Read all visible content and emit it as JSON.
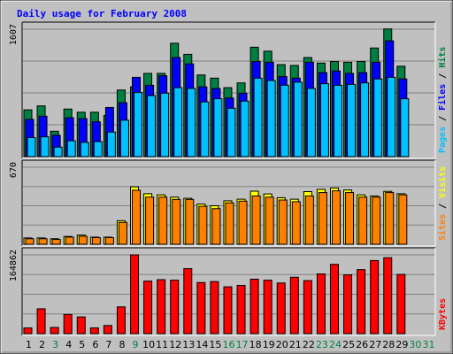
{
  "chart_data": {
    "type": "bar",
    "title": "Daily usage for February 2008",
    "categories": [
      "1",
      "2",
      "3",
      "4",
      "5",
      "6",
      "7",
      "8",
      "9",
      "10",
      "11",
      "12",
      "13",
      "14",
      "15",
      "16",
      "17",
      "18",
      "19",
      "20",
      "21",
      "22",
      "23",
      "24",
      "25",
      "26",
      "27",
      "28",
      "29",
      "30",
      "31"
    ],
    "day_colors": [
      "#000000",
      "#000000",
      "#008040",
      "#000000",
      "#000000",
      "#000000",
      "#000000",
      "#000000",
      "#008040",
      "#000000",
      "#000000",
      "#000000",
      "#000000",
      "#000000",
      "#000000",
      "#008040",
      "#008040",
      "#000000",
      "#000000",
      "#000000",
      "#000000",
      "#000000",
      "#008040",
      "#008040",
      "#000000",
      "#000000",
      "#000000",
      "#000000",
      "#000000",
      "#008040",
      "#008040"
    ],
    "panels": [
      {
        "id": "hits-files-pages",
        "ymax_label": "1607",
        "ymax": 1607,
        "side_label": [
          "Pages",
          " / ",
          "Files",
          " / ",
          "Hits"
        ],
        "side_colors": [
          "#00c0ff",
          "#000000",
          "#0000ff",
          "#000000",
          "#008040"
        ],
        "series": [
          {
            "name": "Hits",
            "color": "#008040",
            "values": [
              590,
              640,
              320,
              600,
              560,
              560,
              520,
              840,
              880,
              1050,
              1050,
              1430,
              1290,
              1030,
              990,
              870,
              930,
              1380,
              1330,
              1160,
              1150,
              1250,
              1180,
              1200,
              1190,
              1200,
              1370,
              1610,
              1140
            ]
          },
          {
            "name": "Files",
            "color": "#0000ff",
            "values": [
              470,
              510,
              270,
              490,
              480,
              440,
              620,
              680,
              1000,
              900,
              1020,
              1250,
              1170,
              880,
              860,
              740,
              800,
              1200,
              1190,
              1010,
              990,
              1190,
              1060,
              1080,
              1050,
              1060,
              1190,
              1460,
              980
            ]
          },
          {
            "name": "Pages",
            "color": "#00c0ff",
            "values": [
              240,
              250,
              120,
              200,
              180,
              190,
              310,
              460,
              810,
              770,
              800,
              870,
              860,
              690,
              730,
              610,
              700,
              990,
              960,
              900,
              940,
              860,
              920,
              900,
              910,
              930,
              980,
              1000,
              730
            ]
          }
        ]
      },
      {
        "id": "visits-sites",
        "ymax_label": "670",
        "ymax": 670,
        "side_label": [
          "Sites",
          " / ",
          "Visits"
        ],
        "side_colors": [
          "#ff8000",
          "#000000",
          "#ffff00"
        ],
        "series": [
          {
            "name": "Visits",
            "color": "#ffff00",
            "values": [
              55,
              55,
              48,
              68,
              80,
              62,
              62,
              205,
              500,
              440,
              430,
              410,
              400,
              350,
              335,
              378,
              392,
              462,
              438,
              405,
              392,
              458,
              478,
              490,
              472,
              430,
              420,
              460,
              440
            ]
          },
          {
            "name": "Sites",
            "color": "#ff8000",
            "values": [
              48,
              48,
              42,
              62,
              70,
              58,
              58,
              190,
              470,
              410,
              410,
              390,
              390,
              330,
              310,
              360,
              375,
              420,
              410,
              385,
              370,
              420,
              450,
              465,
              450,
              410,
              410,
              450,
              430
            ]
          }
        ]
      },
      {
        "id": "kbytes",
        "ymax_label": "164862",
        "ymax": 164862,
        "side_label": [
          "KBytes"
        ],
        "side_colors": [
          "#ff0000"
        ],
        "series": [
          {
            "name": "KBytes",
            "color": "#ff0000",
            "values": [
              12000,
              52000,
              13000,
              40000,
              35000,
              12000,
              17000,
              56000,
              164862,
              110000,
              113000,
              112000,
              136000,
              107000,
              109000,
              98000,
              101000,
              114000,
              112000,
              106000,
              118000,
              111000,
              125000,
              145000,
              123000,
              134000,
              153000,
              159000,
              124000
            ]
          }
        ]
      }
    ]
  }
}
